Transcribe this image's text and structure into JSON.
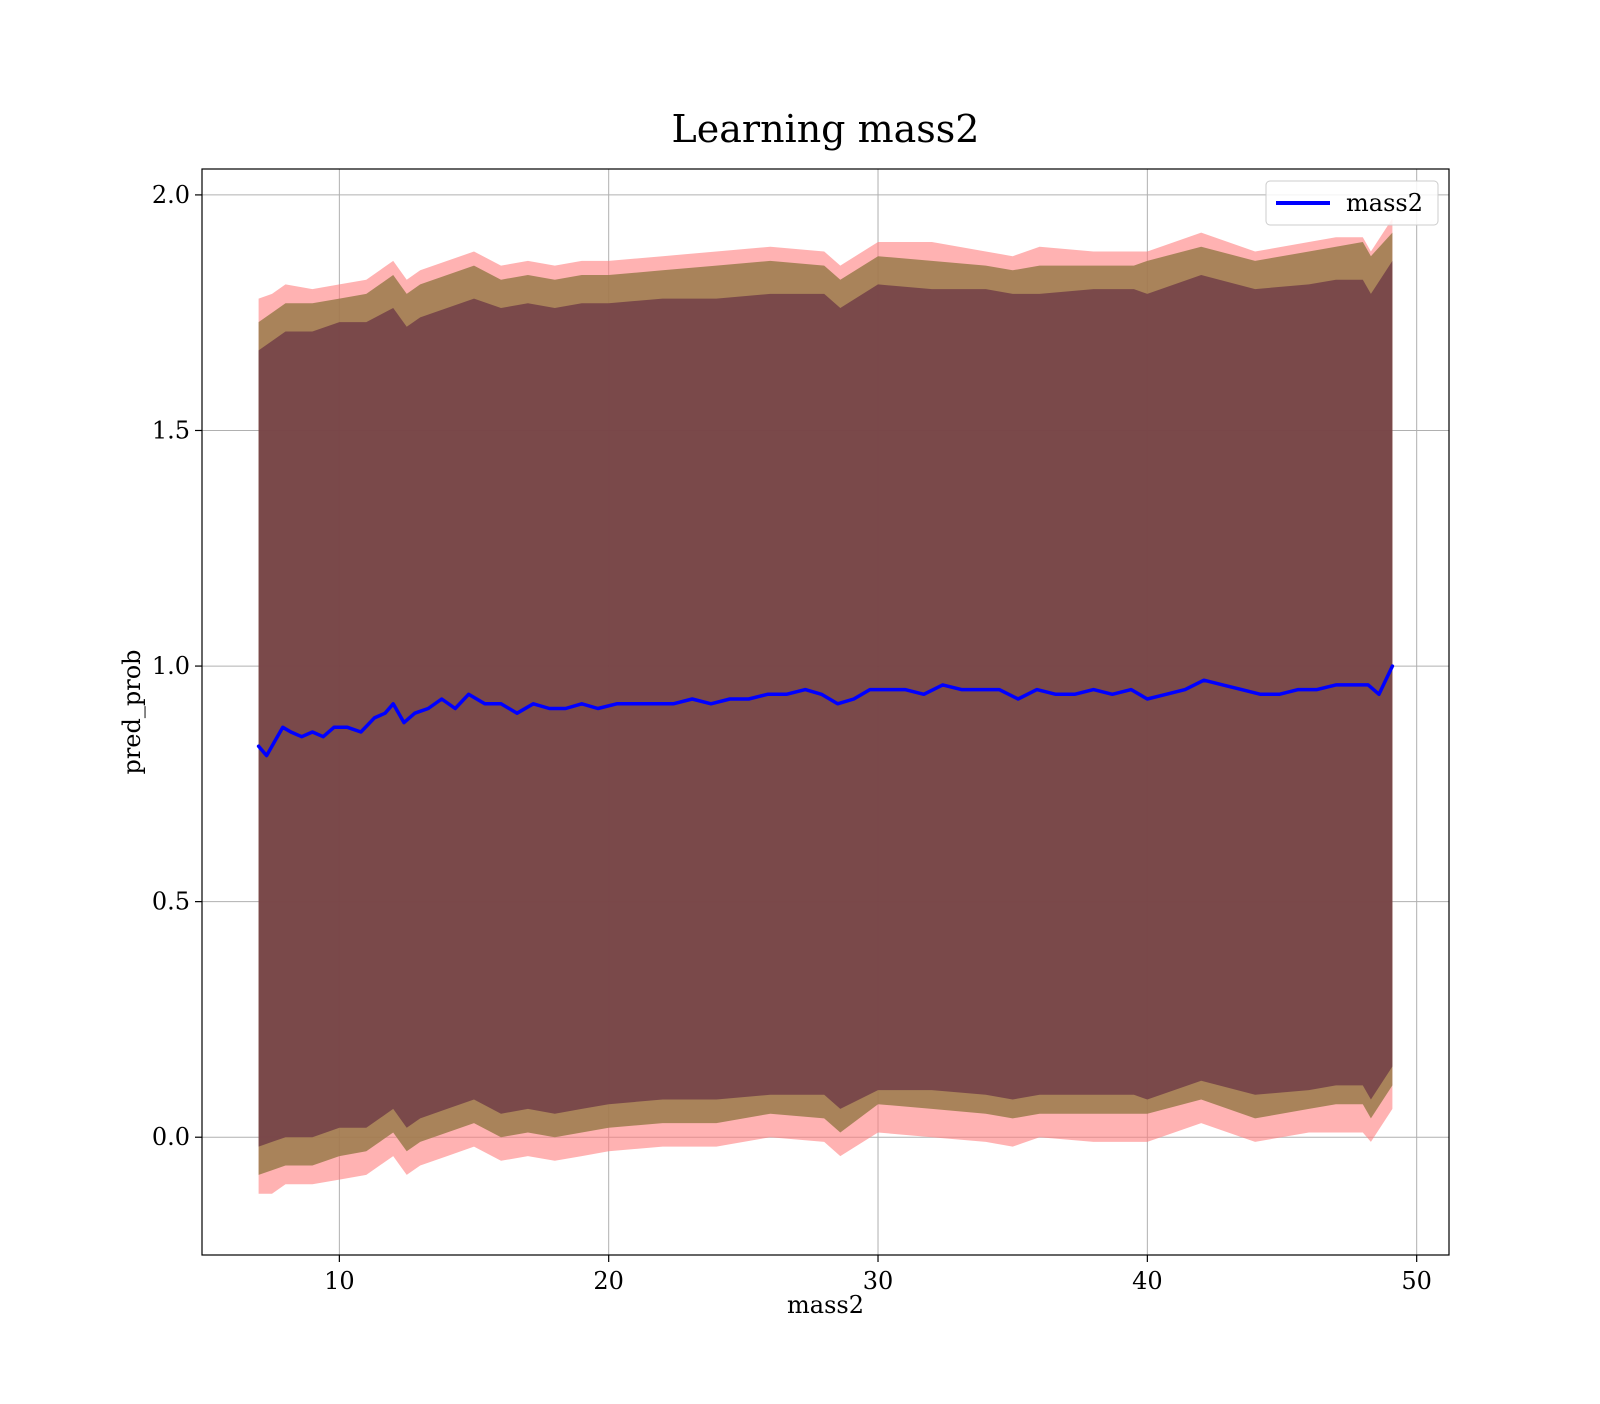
{
  "chart_data": {
    "type": "line",
    "title": "Learning mass2",
    "xlabel": "mass2",
    "ylabel": "pred_prob",
    "xlim": [
      4.9,
      51.2
    ],
    "ylim": [
      -0.25,
      2.055
    ],
    "xticks": [
      10,
      20,
      30,
      40,
      50
    ],
    "yticks": [
      0.0,
      0.5,
      1.0,
      1.5,
      2.0
    ],
    "xtick_labels": [
      "10",
      "20",
      "30",
      "40",
      "50"
    ],
    "ytick_labels": [
      "0.0",
      "0.5",
      "1.0",
      "1.5",
      "2.0"
    ],
    "grid": true,
    "legend_position": "top-right",
    "colors": {
      "line": "#0000ff",
      "band_outer": "#ff7f7f",
      "band_middle": "#9a7a4a",
      "band_inner": "#6b3546",
      "grid": "#b0b0b0"
    },
    "series": [
      {
        "name": "mass2",
        "x": [
          7.0,
          7.3,
          7.6,
          7.9,
          8.2,
          8.6,
          9.0,
          9.4,
          9.8,
          10.3,
          10.8,
          11.3,
          11.7,
          12.0,
          12.4,
          12.8,
          13.3,
          13.8,
          14.3,
          14.8,
          15.4,
          16.0,
          16.6,
          17.2,
          17.8,
          18.4,
          19.0,
          19.6,
          20.3,
          21.0,
          21.7,
          22.4,
          23.1,
          23.8,
          24.5,
          25.2,
          25.9,
          26.6,
          27.3,
          27.9,
          28.5,
          29.1,
          29.7,
          30.3,
          31.0,
          31.7,
          32.4,
          33.1,
          33.8,
          34.5,
          35.2,
          35.9,
          36.6,
          37.3,
          38.0,
          38.7,
          39.4,
          40.0,
          40.7,
          41.4,
          42.1,
          42.8,
          43.5,
          44.2,
          44.9,
          45.6,
          46.3,
          47.0,
          47.7,
          48.2,
          48.6,
          49.1
        ],
        "values": [
          0.83,
          0.81,
          0.84,
          0.87,
          0.86,
          0.85,
          0.86,
          0.85,
          0.87,
          0.87,
          0.86,
          0.89,
          0.9,
          0.92,
          0.88,
          0.9,
          0.91,
          0.93,
          0.91,
          0.94,
          0.92,
          0.92,
          0.9,
          0.92,
          0.91,
          0.91,
          0.92,
          0.91,
          0.92,
          0.92,
          0.92,
          0.92,
          0.93,
          0.92,
          0.93,
          0.93,
          0.94,
          0.94,
          0.95,
          0.94,
          0.92,
          0.93,
          0.95,
          0.95,
          0.95,
          0.94,
          0.96,
          0.95,
          0.95,
          0.95,
          0.93,
          0.95,
          0.94,
          0.94,
          0.95,
          0.94,
          0.95,
          0.93,
          0.94,
          0.95,
          0.97,
          0.96,
          0.95,
          0.94,
          0.94,
          0.95,
          0.95,
          0.96,
          0.96,
          0.96,
          0.94,
          1.0
        ]
      }
    ],
    "bands": [
      {
        "x": [
          7.0,
          7.5,
          8.0,
          9.0,
          10.0,
          11.0,
          12.0,
          12.5,
          13.0,
          14.0,
          15.0,
          16.0,
          17.0,
          18.0,
          19.0,
          20.0,
          22.0,
          24.0,
          26.0,
          28.0,
          28.6,
          30.0,
          32.0,
          34.0,
          35.0,
          36.0,
          38.0,
          39.5,
          40.0,
          42.0,
          44.0,
          46.0,
          47.0,
          48.0,
          48.3,
          49.1
        ],
        "upper": [
          1.78,
          1.79,
          1.81,
          1.8,
          1.81,
          1.82,
          1.86,
          1.82,
          1.84,
          1.86,
          1.88,
          1.85,
          1.86,
          1.85,
          1.86,
          1.86,
          1.87,
          1.88,
          1.89,
          1.88,
          1.85,
          1.9,
          1.9,
          1.88,
          1.87,
          1.89,
          1.88,
          1.88,
          1.88,
          1.92,
          1.88,
          1.9,
          1.91,
          1.91,
          1.88,
          1.95
        ],
        "lower": [
          -0.12,
          -0.12,
          -0.1,
          -0.1,
          -0.09,
          -0.08,
          -0.04,
          -0.08,
          -0.06,
          -0.04,
          -0.02,
          -0.05,
          -0.04,
          -0.05,
          -0.04,
          -0.03,
          -0.02,
          -0.02,
          0.0,
          -0.01,
          -0.04,
          0.01,
          0.0,
          -0.01,
          -0.02,
          0.0,
          -0.01,
          -0.01,
          -0.01,
          0.03,
          -0.01,
          0.01,
          0.01,
          0.01,
          -0.01,
          0.06
        ]
      },
      {
        "x": [
          7.0,
          7.5,
          8.0,
          9.0,
          10.0,
          11.0,
          12.0,
          12.5,
          13.0,
          14.0,
          15.0,
          16.0,
          17.0,
          18.0,
          19.0,
          20.0,
          22.0,
          24.0,
          26.0,
          28.0,
          28.6,
          30.0,
          32.0,
          34.0,
          35.0,
          36.0,
          38.0,
          39.5,
          40.0,
          42.0,
          44.0,
          46.0,
          47.0,
          48.0,
          48.3,
          49.1
        ],
        "upper": [
          1.73,
          1.75,
          1.77,
          1.77,
          1.78,
          1.79,
          1.83,
          1.79,
          1.81,
          1.83,
          1.85,
          1.82,
          1.83,
          1.82,
          1.83,
          1.83,
          1.84,
          1.85,
          1.86,
          1.85,
          1.82,
          1.87,
          1.86,
          1.85,
          1.84,
          1.85,
          1.85,
          1.85,
          1.86,
          1.89,
          1.86,
          1.88,
          1.89,
          1.9,
          1.87,
          1.92
        ],
        "lower": [
          -0.08,
          -0.07,
          -0.06,
          -0.06,
          -0.04,
          -0.03,
          0.01,
          -0.03,
          -0.01,
          0.01,
          0.03,
          0.0,
          0.01,
          0.0,
          0.01,
          0.02,
          0.03,
          0.03,
          0.05,
          0.04,
          0.01,
          0.07,
          0.06,
          0.05,
          0.04,
          0.05,
          0.05,
          0.05,
          0.05,
          0.08,
          0.04,
          0.06,
          0.07,
          0.07,
          0.04,
          0.11
        ]
      },
      {
        "x": [
          7.0,
          7.5,
          8.0,
          9.0,
          10.0,
          11.0,
          12.0,
          12.5,
          13.0,
          14.0,
          15.0,
          16.0,
          17.0,
          18.0,
          19.0,
          20.0,
          22.0,
          24.0,
          26.0,
          28.0,
          28.6,
          30.0,
          32.0,
          34.0,
          35.0,
          36.0,
          38.0,
          39.5,
          40.0,
          42.0,
          44.0,
          46.0,
          47.0,
          48.0,
          48.3,
          49.1
        ],
        "upper": [
          1.67,
          1.69,
          1.71,
          1.71,
          1.73,
          1.73,
          1.76,
          1.72,
          1.74,
          1.76,
          1.78,
          1.76,
          1.77,
          1.76,
          1.77,
          1.77,
          1.78,
          1.78,
          1.79,
          1.79,
          1.76,
          1.81,
          1.8,
          1.8,
          1.79,
          1.79,
          1.8,
          1.8,
          1.79,
          1.83,
          1.8,
          1.81,
          1.82,
          1.82,
          1.79,
          1.86
        ],
        "lower": [
          -0.02,
          -0.01,
          0.0,
          0.0,
          0.02,
          0.02,
          0.06,
          0.02,
          0.04,
          0.06,
          0.08,
          0.05,
          0.06,
          0.05,
          0.06,
          0.07,
          0.08,
          0.08,
          0.09,
          0.09,
          0.06,
          0.1,
          0.1,
          0.09,
          0.08,
          0.09,
          0.09,
          0.09,
          0.08,
          0.12,
          0.09,
          0.1,
          0.11,
          0.11,
          0.08,
          0.15
        ]
      }
    ]
  }
}
